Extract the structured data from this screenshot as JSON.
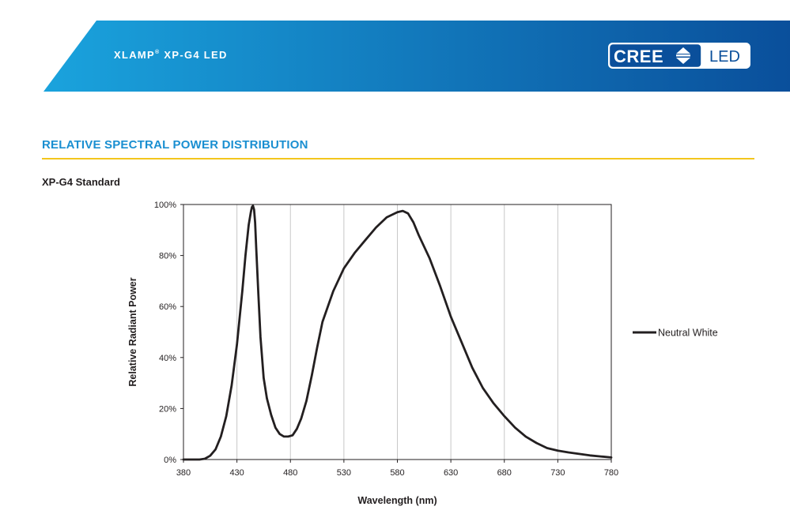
{
  "header": {
    "title": "XLAMP",
    "title_mark": "®",
    "title_rest": " XP-G4 LED",
    "logo": {
      "left_text": "CREE",
      "right_text": "LED",
      "icon": "cree-arrows-icon"
    },
    "colors": {
      "band_start": "#1aa3dd",
      "band_end": "#0a4f9b"
    }
  },
  "section": {
    "title": "RELATIVE SPECTRAL POWER DISTRIBUTION",
    "title_color": "#1a8fd1",
    "rule_color": "#f3c61d"
  },
  "subsection": {
    "title": "XP-G4 Standard"
  },
  "chart_data": {
    "type": "line",
    "title": "",
    "xlabel": "Wavelength (nm)",
    "ylabel": "Relative Radiant Power",
    "xlim": [
      380,
      780
    ],
    "ylim": [
      0,
      100
    ],
    "xticks": [
      380,
      430,
      480,
      530,
      580,
      630,
      680,
      730,
      780
    ],
    "xtick_labels": [
      "380",
      "430",
      "480",
      "530",
      "580",
      "630",
      "680",
      "730",
      "780"
    ],
    "yticks": [
      0,
      20,
      40,
      60,
      80,
      100
    ],
    "ytick_labels": [
      "0%",
      "20%",
      "40%",
      "60%",
      "80%",
      "100%"
    ],
    "grid": "vertical",
    "legend": {
      "position": "right",
      "entries": [
        "Neutral White"
      ]
    },
    "series": [
      {
        "name": "Neutral White",
        "color": "#231f20",
        "x": [
          380,
          395,
          400,
          405,
          410,
          415,
          420,
          425,
          430,
          435,
          438,
          441,
          443,
          444,
          445,
          446,
          447,
          448,
          450,
          452,
          455,
          458,
          462,
          466,
          470,
          474,
          478,
          482,
          486,
          490,
          495,
          500,
          505,
          510,
          520,
          530,
          540,
          550,
          560,
          570,
          580,
          585,
          590,
          595,
          600,
          610,
          620,
          630,
          640,
          650,
          660,
          670,
          680,
          690,
          700,
          710,
          720,
          730,
          740,
          750,
          760,
          770,
          780
        ],
        "y": [
          0,
          0,
          0.3,
          1.5,
          4,
          9,
          17,
          29,
          45,
          66,
          80,
          92,
          97,
          99,
          99.5,
          98,
          93,
          83,
          65,
          48,
          32,
          24,
          17.5,
          12.5,
          10,
          9,
          9,
          9.5,
          12,
          16,
          23,
          33,
          44,
          54,
          66,
          75,
          81,
          86,
          91,
          95,
          97,
          97.5,
          96.5,
          93,
          88,
          79,
          68,
          56,
          46,
          36,
          28,
          22,
          17,
          12.5,
          9,
          6.5,
          4.5,
          3.5,
          2.8,
          2.2,
          1.6,
          1.2,
          0.8
        ]
      }
    ]
  }
}
